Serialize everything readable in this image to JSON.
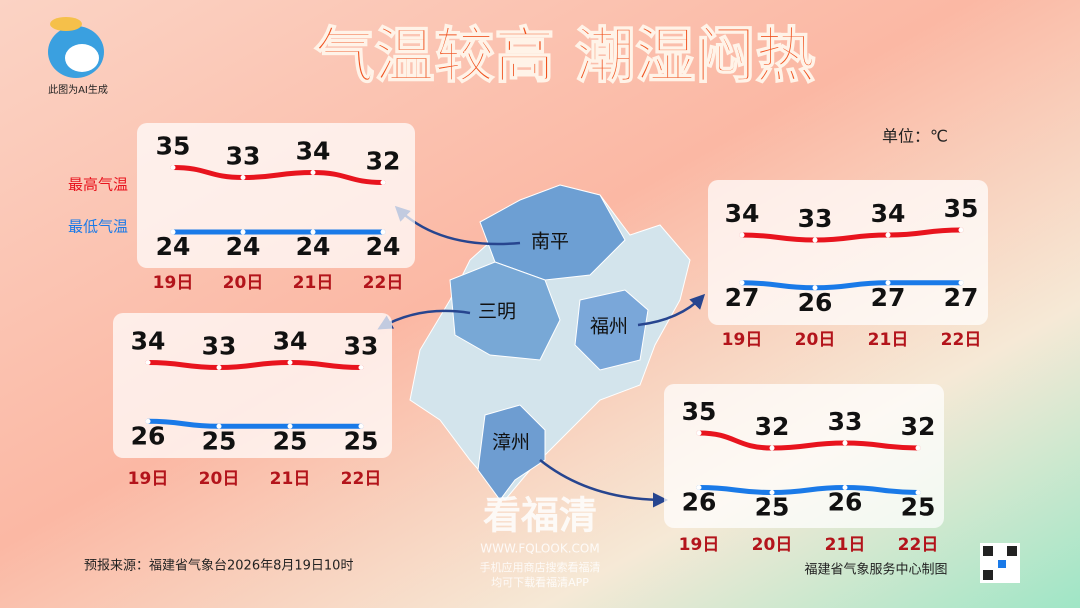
{
  "title": "气温较高  潮湿闷热",
  "ai_note": "此图为AI生成",
  "unit": "单位：℃",
  "source": "预报来源：福建省气象台2026年8月19日10时",
  "producer": "福建省气象服务中心制图",
  "watermark": {
    "name": "看福清",
    "url": "WWW.FQLOOK.COM",
    "line1": "手机应用商店搜索看福清",
    "line2": "均可下载看福清APP"
  },
  "chart_data": [
    {
      "type": "line",
      "title": "南平",
      "categories": [
        "19日",
        "20日",
        "21日",
        "22日"
      ],
      "series": [
        {
          "name": "最高气温",
          "color": "#e8141e",
          "values": [
            35,
            33,
            34,
            32
          ]
        },
        {
          "name": "最低气温",
          "color": "#1a7ae8",
          "values": [
            24,
            24,
            24,
            24
          ]
        }
      ]
    },
    {
      "type": "line",
      "title": "三明",
      "categories": [
        "19日",
        "20日",
        "21日",
        "22日"
      ],
      "series": [
        {
          "color": "#e8141e",
          "values": [
            34,
            33,
            34,
            33
          ]
        },
        {
          "color": "#1a7ae8",
          "values": [
            26,
            25,
            25,
            25
          ]
        }
      ]
    },
    {
      "type": "line",
      "title": "福州",
      "categories": [
        "19日",
        "20日",
        "21日",
        "22日"
      ],
      "series": [
        {
          "color": "#e8141e",
          "values": [
            34,
            33,
            34,
            35
          ]
        },
        {
          "color": "#1a7ae8",
          "values": [
            27,
            26,
            27,
            27
          ]
        }
      ]
    },
    {
      "type": "line",
      "title": "漳州",
      "categories": [
        "19日",
        "20日",
        "21日",
        "22日"
      ],
      "series": [
        {
          "color": "#e8141e",
          "values": [
            35,
            32,
            33,
            32
          ]
        },
        {
          "color": "#1a7ae8",
          "values": [
            26,
            25,
            26,
            25
          ]
        }
      ]
    }
  ]
}
